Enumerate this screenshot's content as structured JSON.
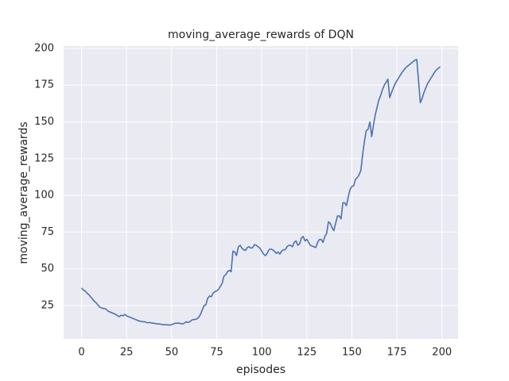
{
  "chart_data": {
    "type": "line",
    "title": "moving_average_rewards of DQN",
    "x_label": "episodes",
    "y_label": "moving_average_rewards",
    "color": "#4c72b0",
    "grid": true,
    "xlim": [
      -9.95,
      208.95
    ],
    "xticks": [
      0,
      25,
      50,
      75,
      100,
      125,
      150,
      175,
      200
    ],
    "ylim": [
      2.3,
      201.6
    ],
    "yticks": [
      25,
      50,
      75,
      100,
      125,
      150,
      175,
      200
    ],
    "x": [
      0,
      1,
      2,
      3,
      4,
      5,
      6,
      7,
      8,
      9,
      10,
      11,
      12,
      13,
      14,
      15,
      16,
      17,
      18,
      19,
      20,
      21,
      22,
      23,
      24,
      25,
      26,
      27,
      28,
      29,
      30,
      31,
      32,
      33,
      34,
      35,
      36,
      37,
      38,
      39,
      40,
      41,
      42,
      43,
      44,
      45,
      46,
      47,
      48,
      49,
      50,
      51,
      52,
      53,
      54,
      55,
      56,
      57,
      58,
      59,
      60,
      61,
      62,
      63,
      64,
      65,
      66,
      67,
      68,
      69,
      70,
      71,
      72,
      73,
      74,
      75,
      76,
      77,
      78,
      79,
      80,
      81,
      82,
      83,
      84,
      85,
      86,
      87,
      88,
      89,
      90,
      91,
      92,
      93,
      94,
      95,
      96,
      97,
      98,
      99,
      100,
      101,
      102,
      103,
      104,
      105,
      106,
      107,
      108,
      109,
      110,
      111,
      112,
      113,
      114,
      115,
      116,
      117,
      118,
      119,
      120,
      121,
      122,
      123,
      124,
      125,
      126,
      127,
      128,
      129,
      130,
      131,
      132,
      133,
      134,
      135,
      136,
      137,
      138,
      139,
      140,
      141,
      142,
      143,
      144,
      145,
      146,
      147,
      148,
      149,
      150,
      151,
      152,
      153,
      154,
      155,
      156,
      157,
      158,
      159,
      160,
      161,
      162,
      163,
      164,
      165,
      166,
      167,
      168,
      169,
      170,
      171,
      172,
      173,
      174,
      175,
      176,
      177,
      178,
      179,
      180,
      181,
      182,
      183,
      184,
      185,
      186,
      187,
      188,
      189,
      190,
      191,
      192,
      193,
      194,
      195,
      196,
      197,
      198,
      199
    ],
    "values": [
      37,
      35.5,
      35,
      33.5,
      32.5,
      31,
      29.5,
      28,
      27,
      25.5,
      24,
      23.5,
      23,
      23,
      22,
      21,
      20.5,
      20,
      19.5,
      19,
      18,
      17.5,
      18.5,
      18,
      19,
      18,
      17.5,
      17,
      16.5,
      16,
      15.5,
      15,
      14.5,
      14.3,
      14,
      14,
      13.5,
      13.3,
      13.5,
      13,
      13,
      12.8,
      12.5,
      12.5,
      12.3,
      12,
      12,
      12,
      11.8,
      11.8,
      12,
      12.5,
      13,
      13,
      13,
      12.8,
      12.5,
      13,
      14,
      13.5,
      14,
      15,
      15.5,
      15.5,
      16,
      17,
      19,
      22,
      25,
      25.5,
      30,
      31.5,
      31,
      33.5,
      34.5,
      35,
      36,
      38,
      40,
      45,
      46,
      48,
      49,
      48,
      62,
      61.5,
      59,
      65,
      66,
      64,
      63,
      62.5,
      64.5,
      65,
      64,
      64.5,
      66.5,
      66,
      65,
      64,
      62,
      60,
      59,
      60.5,
      63,
      63.5,
      63,
      62,
      60.5,
      61.5,
      60,
      62,
      63,
      63,
      65,
      66,
      66,
      65,
      68,
      69,
      66,
      67,
      71,
      72,
      69,
      70,
      68,
      66,
      65.5,
      65,
      64.5,
      68,
      70,
      70,
      68,
      72,
      74,
      82,
      81,
      78,
      76,
      81,
      86,
      86,
      84,
      95,
      95,
      93,
      99,
      104,
      106,
      106.5,
      111,
      112,
      114,
      117,
      128,
      137,
      144,
      145,
      150,
      140,
      148,
      155,
      160,
      165,
      168,
      172,
      175,
      177,
      179,
      166.5,
      170,
      173,
      176,
      178,
      180,
      182,
      184,
      185.5,
      187,
      188,
      189,
      190,
      191,
      192,
      192.5,
      178,
      163,
      166,
      170,
      173,
      176,
      178,
      180,
      182,
      184,
      185.5,
      186.5,
      187.5
    ]
  }
}
